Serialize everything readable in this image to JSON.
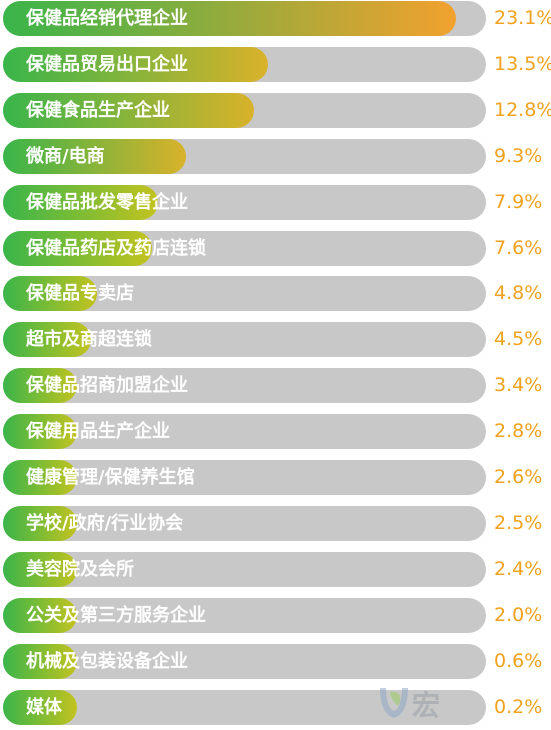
{
  "chart_data": {
    "type": "bar",
    "orientation": "horizontal",
    "categories": [
      "保健品经销代理企业",
      "保健品贸易出口企业",
      "保健食品生产企业",
      "微商/电商",
      "保健品批发零售企业",
      "保健品药店及药店连锁",
      "保健品专卖店",
      "超市及商超连锁",
      "保健品招商加盟企业",
      "保健用品生产企业",
      "健康管理/保健养生馆",
      "学校/政府/行业协会",
      "美容院及会所",
      "公关及第三方服务企业",
      "机械及包装设备企业",
      "媒体"
    ],
    "values": [
      23.1,
      13.5,
      12.8,
      9.3,
      7.9,
      7.6,
      4.8,
      4.5,
      3.4,
      2.8,
      2.6,
      2.5,
      2.4,
      2.0,
      0.6,
      0.2
    ],
    "value_labels": [
      "23.1%",
      "13.5%",
      "12.8%",
      "9.3%",
      "7.9%",
      "7.6%",
      "4.8%",
      "4.5%",
      "3.4%",
      "2.8%",
      "2.6%",
      "2.5%",
      "2.4%",
      "2.0%",
      "0.6%",
      "0.2%"
    ],
    "xlim": [
      0,
      24
    ],
    "colors": {
      "track": "#c8c8c8",
      "fill_start": "#39b54a",
      "fill_mid": "#c3c31f",
      "fill_end": "#f2a12e",
      "value_text": "#f0a21e",
      "label_text": "#ffffff"
    }
  },
  "watermark": {
    "text": "宏",
    "icon": "logo-leaf-icon"
  }
}
